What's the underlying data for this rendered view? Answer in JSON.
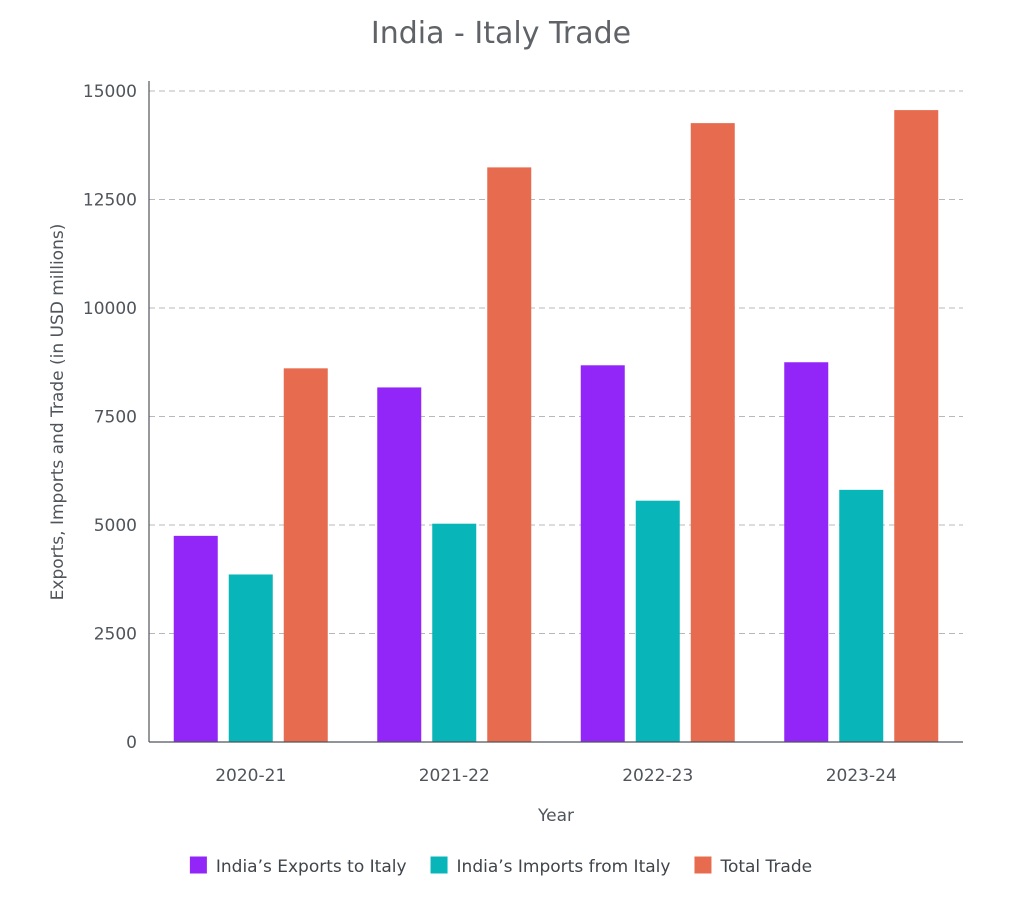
{
  "chart_data": {
    "type": "bar",
    "title": "India - Italy Trade",
    "xlabel": "Year",
    "ylabel": "Exports, Imports and Trade (in USD millions)",
    "categories": [
      "2020-21",
      "2021-22",
      "2022-23",
      "2023-24"
    ],
    "series": [
      {
        "name": "India’s Exports to Italy",
        "color": "#9226f8",
        "values": [
          4750,
          8170,
          8680,
          8750
        ]
      },
      {
        "name": "India’s Imports from Italy",
        "color": "#08b5b9",
        "values": [
          3860,
          5030,
          5560,
          5810
        ]
      },
      {
        "name": "Total Trade",
        "color": "#e76c4f",
        "values": [
          8610,
          13240,
          14260,
          14560
        ]
      }
    ],
    "ylim": [
      0,
      15000
    ],
    "yticks": [
      0,
      2500,
      5000,
      7500,
      10000,
      12500,
      15000
    ],
    "grid": true,
    "legend_position": "bottom-center"
  }
}
